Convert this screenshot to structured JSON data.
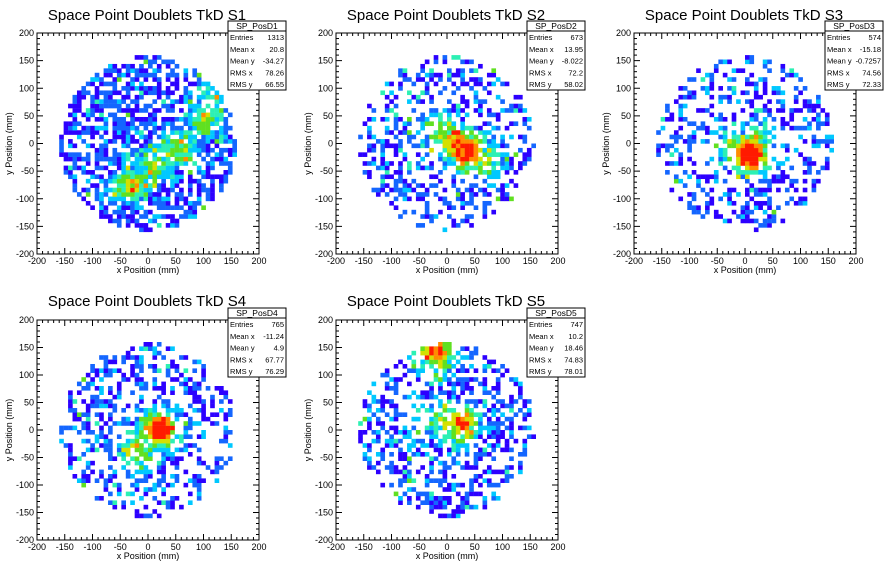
{
  "chart_data": [
    {
      "type": "heatmap",
      "title": "Space Point Doublets TkD S1",
      "xlabel": "x Position (mm)",
      "ylabel": "y Position (mm)",
      "xlim": [
        -200,
        200
      ],
      "ylim": [
        -200,
        200
      ],
      "xticks": [
        -200,
        -150,
        -100,
        -50,
        0,
        50,
        100,
        150,
        200
      ],
      "yticks": [
        -200,
        -150,
        -100,
        -50,
        0,
        50,
        100,
        150,
        200
      ],
      "bin_size_mm": 8,
      "stats": {
        "name": "SP_PosD1",
        "rows": [
          {
            "label": "Entries",
            "value": "1313"
          },
          {
            "label": "Mean x",
            "value": "20.8"
          },
          {
            "label": "Mean y",
            "value": "-34.27"
          },
          {
            "label": "RMS x",
            "value": "78.26"
          },
          {
            "label": "RMS y",
            "value": "66.55"
          }
        ]
      },
      "hotspots": [
        {
          "x": -30,
          "y": -75,
          "level": 0.55
        },
        {
          "x": 10,
          "y": -40,
          "level": 0.45
        },
        {
          "x": 60,
          "y": -10,
          "level": 0.45
        },
        {
          "x": 100,
          "y": 40,
          "level": 0.4
        },
        {
          "x": 120,
          "y": 80,
          "level": 0.35
        }
      ],
      "occupancy": 0.62,
      "seed": 11
    },
    {
      "type": "heatmap",
      "title": "Space Point Doublets TkD S2",
      "xlabel": "x Position (mm)",
      "ylabel": "y Position (mm)",
      "xlim": [
        -200,
        200
      ],
      "ylim": [
        -200,
        200
      ],
      "xticks": [
        -200,
        -150,
        -100,
        -50,
        0,
        50,
        100,
        150,
        200
      ],
      "yticks": [
        -200,
        -150,
        -100,
        -50,
        0,
        50,
        100,
        150,
        200
      ],
      "bin_size_mm": 8,
      "stats": {
        "name": "SP_PosD2",
        "rows": [
          {
            "label": "Entries",
            "value": "673"
          },
          {
            "label": "Mean x",
            "value": "13.95"
          },
          {
            "label": "Mean y",
            "value": "-8.022"
          },
          {
            "label": "RMS x",
            "value": "72.2"
          },
          {
            "label": "RMS y",
            "value": "58.02"
          }
        ]
      },
      "hotspots": [
        {
          "x": 15,
          "y": 0,
          "level": 0.75
        },
        {
          "x": 35,
          "y": -15,
          "level": 0.9
        },
        {
          "x": -10,
          "y": 20,
          "level": 0.5
        },
        {
          "x": 70,
          "y": -30,
          "level": 0.45
        }
      ],
      "occupancy": 0.38,
      "seed": 23
    },
    {
      "type": "heatmap",
      "title": "Space Point Doublets TkD S3",
      "xlabel": "x Position (mm)",
      "ylabel": "y Position (mm)",
      "xlim": [
        -200,
        200
      ],
      "ylim": [
        -200,
        200
      ],
      "xticks": [
        -200,
        -150,
        -100,
        -50,
        0,
        50,
        100,
        150,
        200
      ],
      "yticks": [
        -200,
        -150,
        -100,
        -50,
        0,
        50,
        100,
        150,
        200
      ],
      "bin_size_mm": 8,
      "stats": {
        "name": "SP_PosD3",
        "rows": [
          {
            "label": "Entries",
            "value": "574"
          },
          {
            "label": "Mean x",
            "value": "-15.18"
          },
          {
            "label": "Mean y",
            "value": "-0.7257"
          },
          {
            "label": "RMS x",
            "value": "74.56"
          },
          {
            "label": "RMS y",
            "value": "72.33"
          }
        ]
      },
      "hotspots": [
        {
          "x": 10,
          "y": -20,
          "level": 1.0
        },
        {
          "x": -20,
          "y": -10,
          "level": 0.5
        },
        {
          "x": 25,
          "y": 5,
          "level": 0.4
        }
      ],
      "occupancy": 0.34,
      "seed": 37
    },
    {
      "type": "heatmap",
      "title": "Space Point Doublets TkD S4",
      "xlabel": "x Position (mm)",
      "ylabel": "y Position (mm)",
      "xlim": [
        -200,
        200
      ],
      "ylim": [
        -200,
        200
      ],
      "xticks": [
        -200,
        -150,
        -100,
        -50,
        0,
        50,
        100,
        150,
        200
      ],
      "yticks": [
        -200,
        -150,
        -100,
        -50,
        0,
        50,
        100,
        150,
        200
      ],
      "bin_size_mm": 8,
      "stats": {
        "name": "SP_PosD4",
        "rows": [
          {
            "label": "Entries",
            "value": "765"
          },
          {
            "label": "Mean x",
            "value": "-11.24"
          },
          {
            "label": "Mean y",
            "value": "4.9"
          },
          {
            "label": "RMS x",
            "value": "67.77"
          },
          {
            "label": "RMS y",
            "value": "76.29"
          }
        ]
      },
      "hotspots": [
        {
          "x": 20,
          "y": 0,
          "level": 1.0
        },
        {
          "x": -15,
          "y": -35,
          "level": 0.5
        },
        {
          "x": -5,
          "y": -20,
          "level": 0.4
        }
      ],
      "occupancy": 0.42,
      "seed": 51
    },
    {
      "type": "heatmap",
      "title": "Space Point Doublets TkD S5",
      "xlabel": "x Position (mm)",
      "ylabel": "y Position (mm)",
      "xlim": [
        -200,
        200
      ],
      "ylim": [
        -200,
        200
      ],
      "xticks": [
        -200,
        -150,
        -100,
        -50,
        0,
        50,
        100,
        150,
        200
      ],
      "yticks": [
        -200,
        -150,
        -100,
        -50,
        0,
        50,
        100,
        150,
        200
      ],
      "bin_size_mm": 8,
      "stats": {
        "name": "SP_PosD5",
        "rows": [
          {
            "label": "Entries",
            "value": "747"
          },
          {
            "label": "Mean x",
            "value": "10.2"
          },
          {
            "label": "Mean y",
            "value": "18.46"
          },
          {
            "label": "RMS x",
            "value": "74.83"
          },
          {
            "label": "RMS y",
            "value": "78.01"
          }
        ]
      },
      "hotspots": [
        {
          "x": 25,
          "y": 10,
          "level": 0.7
        },
        {
          "x": -20,
          "y": 140,
          "level": 0.8
        },
        {
          "x": -10,
          "y": 20,
          "level": 0.45
        }
      ],
      "occupancy": 0.42,
      "seed": 67
    }
  ],
  "colors": {
    "background": "#ffffff",
    "frame": "#000000",
    "palette": [
      "#2c00ff",
      "#1466ff",
      "#00c8ff",
      "#2cf0b4",
      "#60e020",
      "#d4e000",
      "#ff8c00",
      "#ff1a00"
    ]
  }
}
